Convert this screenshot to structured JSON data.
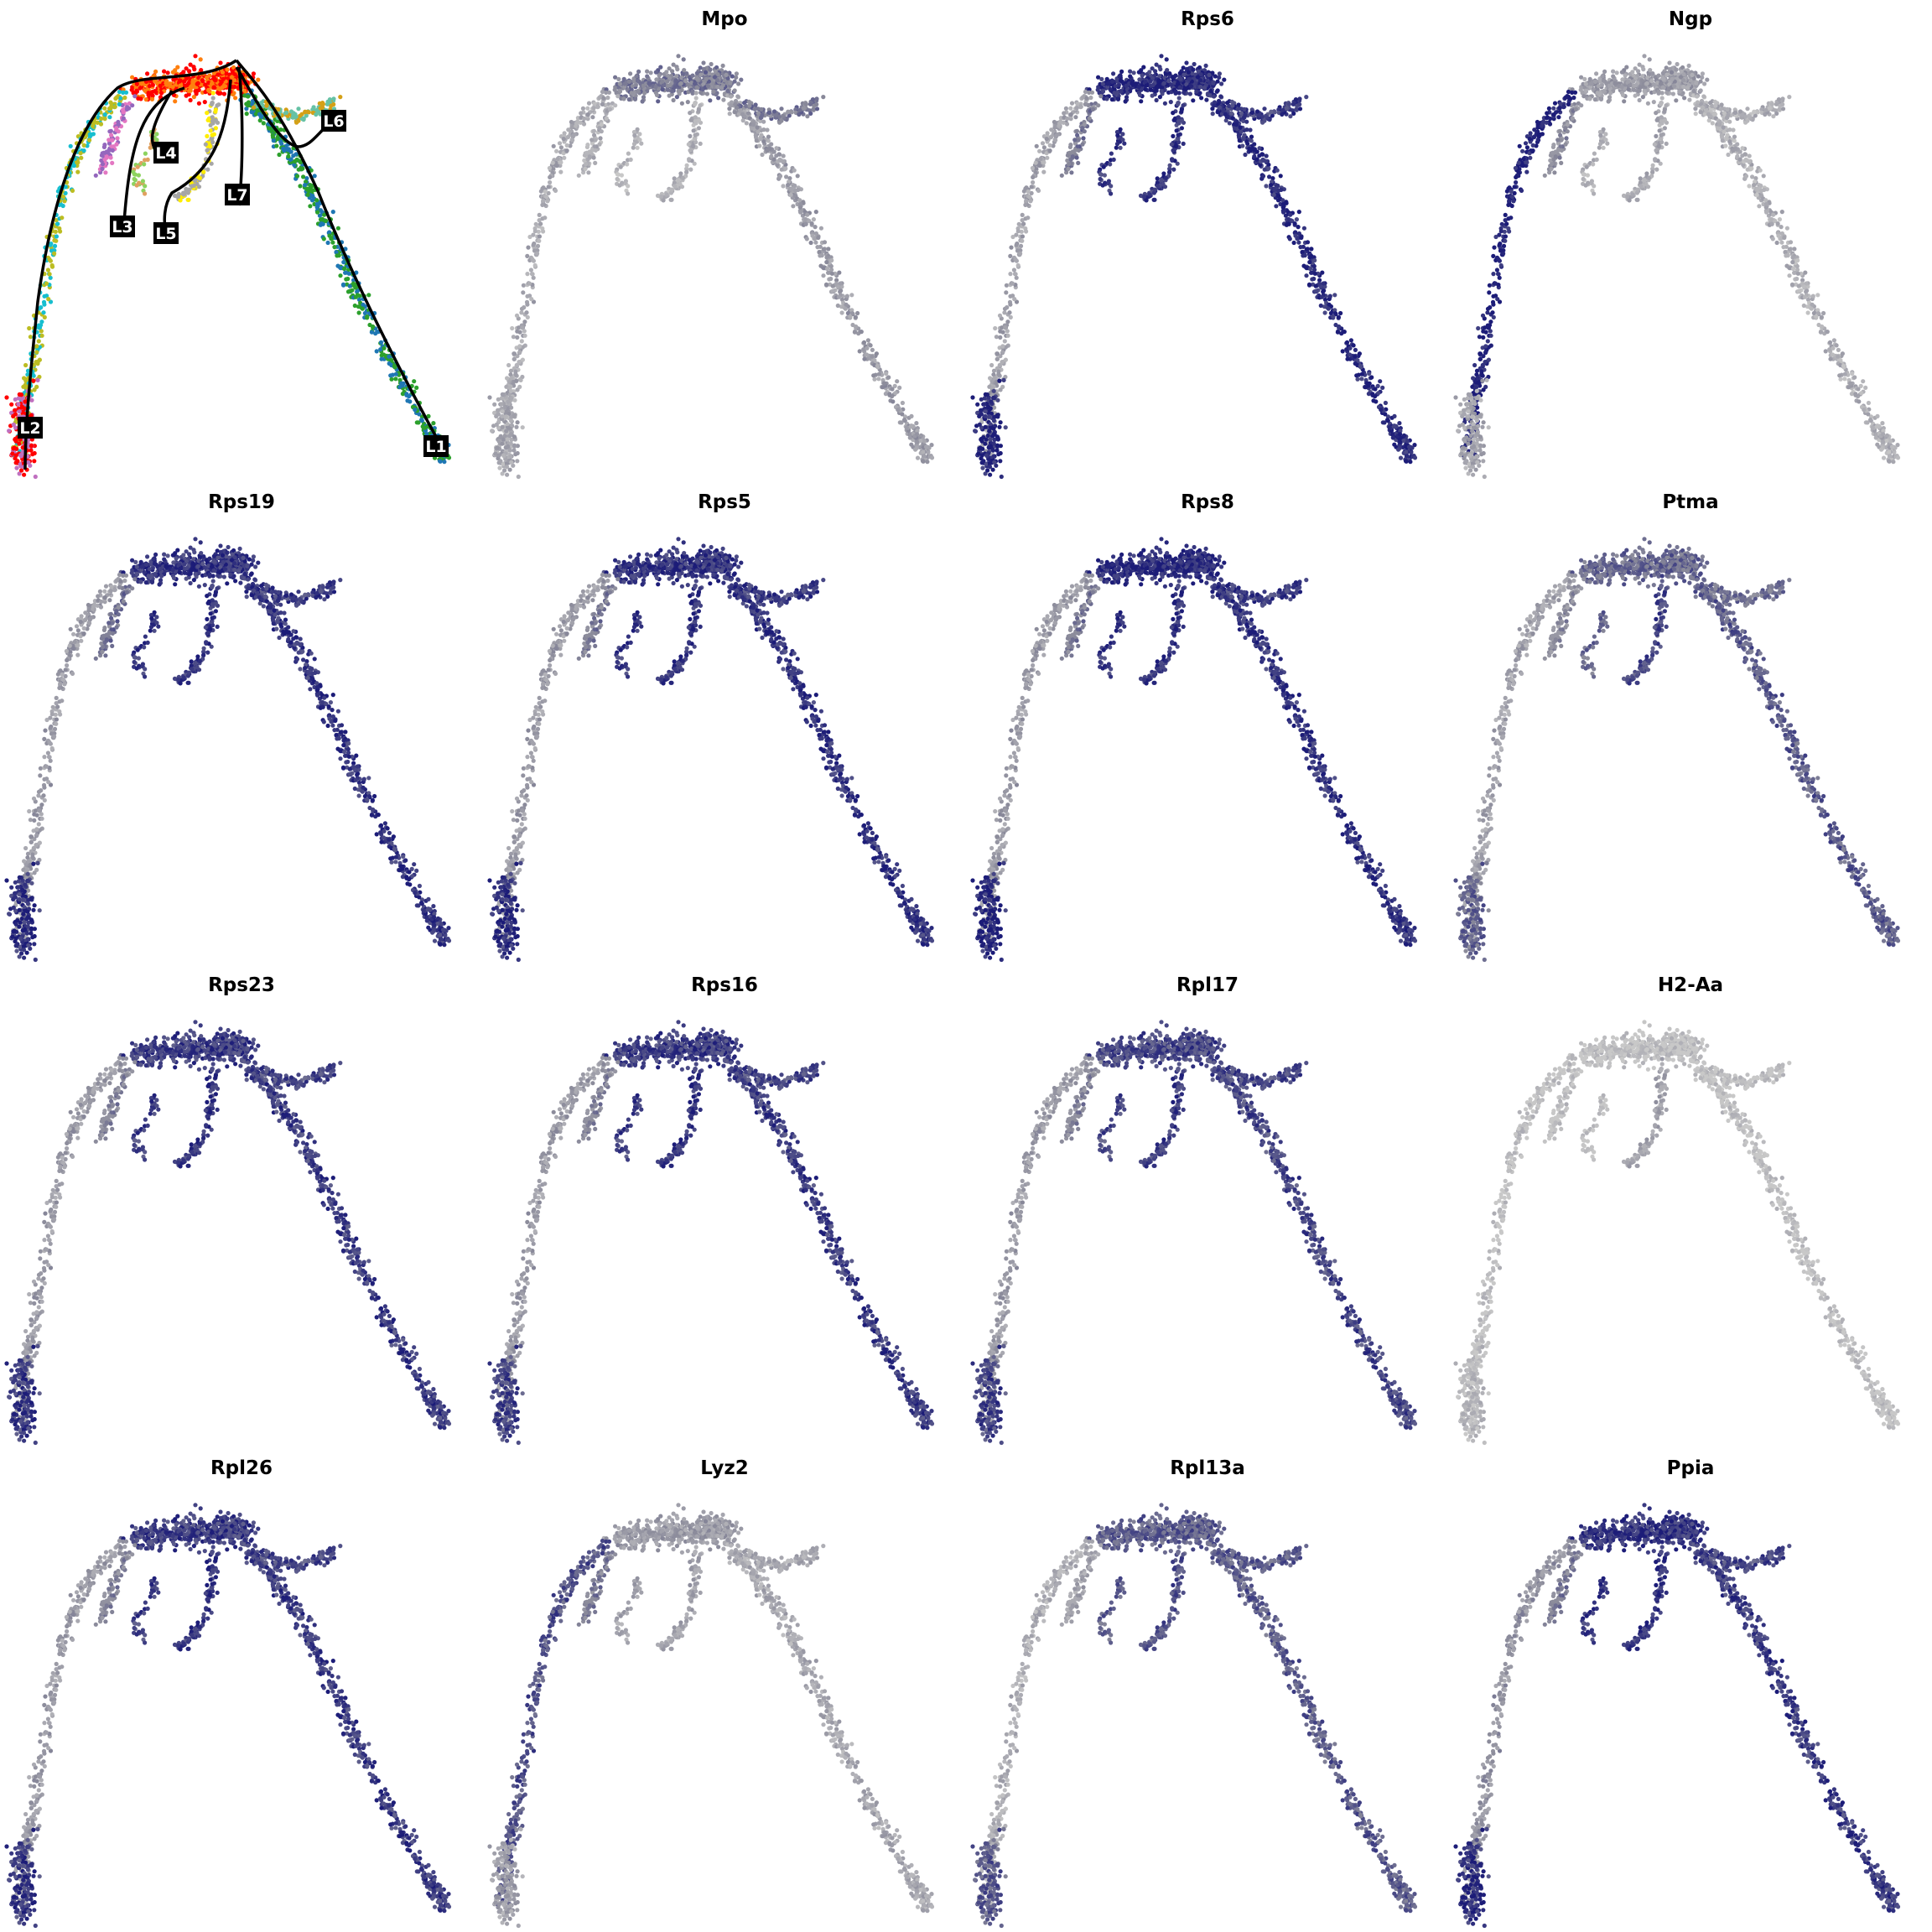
{
  "figure": {
    "rows": 4,
    "cols": 4
  },
  "colors": {
    "expr_low": "#c8c8c8",
    "expr_mid": "#8a8a9a",
    "expr_high": "#1c1c78",
    "trajectory": "#000000",
    "label_bg": "#000000",
    "label_fg": "#ffffff"
  },
  "chart_data": [
    {
      "type": "scatter",
      "title": "",
      "description_role": "trajectory",
      "lineages": [
        "L1",
        "L2",
        "L3",
        "L4",
        "L5",
        "L6",
        "L7"
      ],
      "cluster_colors": [
        "#ff0000",
        "#ff7f0e",
        "#2ca02c",
        "#1f77b4",
        "#9467bd",
        "#e377c2",
        "#bcbd22",
        "#17becf",
        "#d4a017",
        "#66c2a5",
        "#a6a6a6",
        "#ffed00",
        "#8dd35f",
        "#e0a060",
        "#c070c0"
      ]
    },
    {
      "type": "scatter",
      "title": "Mpo",
      "profile": [
        0.55,
        0.35,
        0.2,
        0.25,
        0.55,
        0.2,
        0.15,
        0.25
      ]
    },
    {
      "type": "scatter",
      "title": "Rps6",
      "profile": [
        0.95,
        0.95,
        0.55,
        0.3,
        0.85,
        0.9,
        0.9,
        0.95
      ]
    },
    {
      "type": "scatter",
      "title": "Ngp",
      "profile": [
        0.35,
        0.2,
        0.45,
        1.0,
        0.2,
        0.25,
        0.2,
        0.25
      ]
    },
    {
      "type": "scatter",
      "title": "Rps19",
      "profile": [
        0.9,
        0.9,
        0.6,
        0.35,
        0.85,
        0.9,
        0.9,
        0.9
      ]
    },
    {
      "type": "scatter",
      "title": "Rps5",
      "profile": [
        0.9,
        0.9,
        0.55,
        0.35,
        0.85,
        0.9,
        0.9,
        0.9
      ]
    },
    {
      "type": "scatter",
      "title": "Rps8",
      "profile": [
        0.95,
        0.9,
        0.55,
        0.35,
        0.85,
        0.9,
        0.9,
        0.95
      ]
    },
    {
      "type": "scatter",
      "title": "Ptma",
      "profile": [
        0.65,
        0.7,
        0.45,
        0.3,
        0.6,
        0.8,
        0.65,
        0.65
      ]
    },
    {
      "type": "scatter",
      "title": "Rps23",
      "profile": [
        0.85,
        0.85,
        0.5,
        0.35,
        0.8,
        0.9,
        0.85,
        0.85
      ]
    },
    {
      "type": "scatter",
      "title": "Rps16",
      "profile": [
        0.85,
        0.85,
        0.5,
        0.35,
        0.8,
        0.9,
        0.85,
        0.8
      ]
    },
    {
      "type": "scatter",
      "title": "Rpl17",
      "profile": [
        0.8,
        0.8,
        0.5,
        0.35,
        0.8,
        0.85,
        0.8,
        0.8
      ]
    },
    {
      "type": "scatter",
      "title": "H2-Aa",
      "profile": [
        0.05,
        0.05,
        0.05,
        0.05,
        0.05,
        0.3,
        0.05,
        0.1
      ]
    },
    {
      "type": "scatter",
      "title": "Rpl26",
      "profile": [
        0.85,
        0.85,
        0.5,
        0.35,
        0.8,
        0.9,
        0.85,
        0.85
      ]
    },
    {
      "type": "scatter",
      "title": "Lyz2",
      "profile": [
        0.35,
        0.25,
        0.55,
        0.75,
        0.25,
        0.3,
        0.3,
        0.3
      ]
    },
    {
      "type": "scatter",
      "title": "Rpl13a",
      "profile": [
        0.7,
        0.7,
        0.3,
        0.2,
        0.7,
        0.75,
        0.7,
        0.7
      ]
    },
    {
      "type": "scatter",
      "title": "Ppia",
      "profile": [
        0.9,
        0.85,
        0.55,
        0.4,
        0.8,
        0.9,
        0.9,
        0.9
      ]
    }
  ]
}
